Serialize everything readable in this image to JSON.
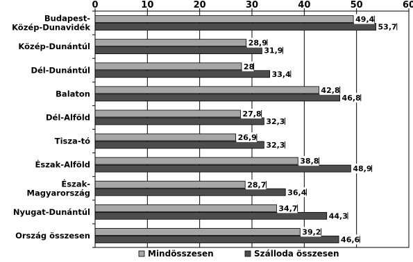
{
  "chart_data": {
    "type": "bar",
    "orientation": "horizontal",
    "title": "",
    "xlabel": "",
    "ylabel": "",
    "xlim": [
      0,
      60
    ],
    "x_ticks": [
      0,
      10,
      20,
      30,
      40,
      50,
      60
    ],
    "x_tick_labels": [
      "0",
      "10",
      "20",
      "30",
      "40",
      "50",
      "60"
    ],
    "grid": true,
    "legend_position": "bottom",
    "categories": [
      [
        "Budapest-",
        "Közép-Dunavidék"
      ],
      [
        "Közép-Dunántúl"
      ],
      [
        "Dél-Dunántúl"
      ],
      [
        "Balaton"
      ],
      [
        "Dél-Alföld"
      ],
      [
        "Tisza-tó"
      ],
      [
        "Észak-Alföld"
      ],
      [
        "Észak-",
        "Magyarország"
      ],
      [
        "Nyugat-Dunántúl"
      ],
      [
        "Ország összesen"
      ]
    ],
    "series": [
      {
        "name": "Mindösszesen",
        "color": "#a6a6a6",
        "values": [
          49.4,
          28.9,
          28,
          42.8,
          27.8,
          26.9,
          38.8,
          28.7,
          34.7,
          39.2
        ],
        "labels": [
          "49,4",
          "28,9",
          "28",
          "42,8",
          "27,8",
          "26,9",
          "38,8",
          "28,7",
          "34,7",
          "39,2"
        ]
      },
      {
        "name": "Szálloda összesen",
        "color": "#4d4d4d",
        "values": [
          53.7,
          31.9,
          33.4,
          46.8,
          32.3,
          32.3,
          48.9,
          36.4,
          44.3,
          46.6
        ],
        "labels": [
          "53,7",
          "31,9",
          "33,4",
          "46,8",
          "32,3",
          "32,3",
          "48,9",
          "36,4",
          "44,3",
          "46,6"
        ]
      }
    ]
  }
}
